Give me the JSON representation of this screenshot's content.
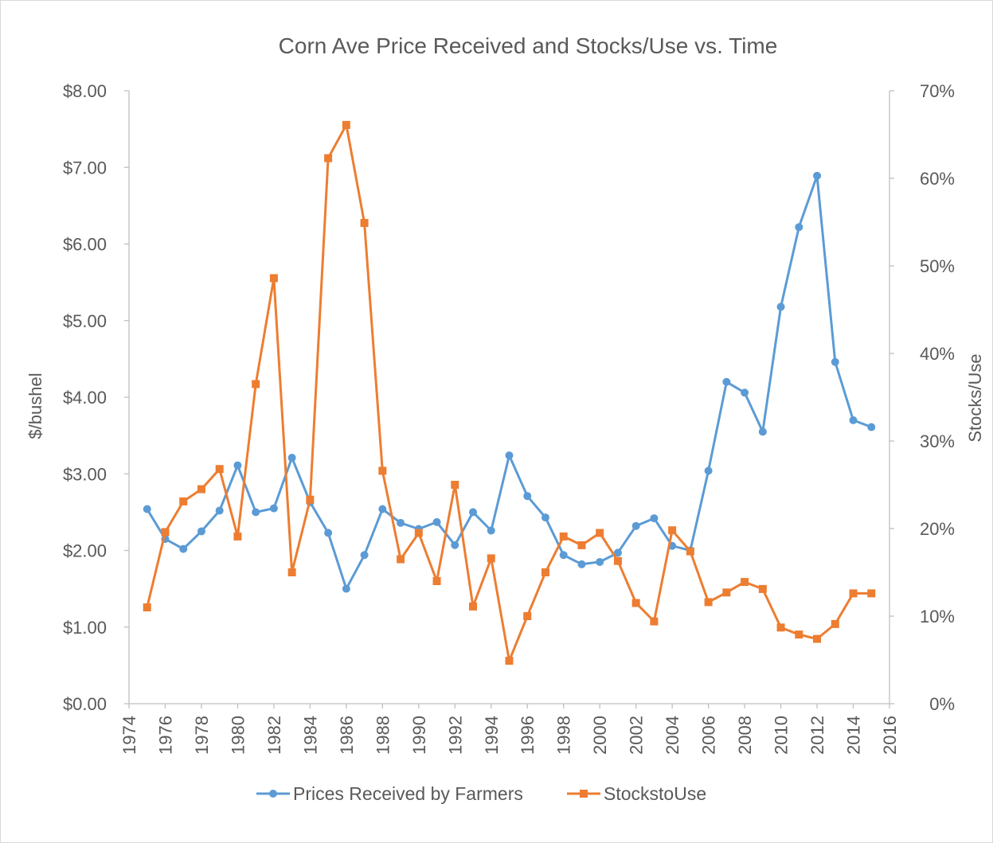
{
  "chart_data": {
    "type": "line",
    "title": "Corn Ave Price Received and Stocks/Use vs. Time",
    "ylabel_left": "$/bushel",
    "ylabel_right": "Stocks/Use",
    "xlim": [
      1974,
      2016
    ],
    "x_ticks": [
      "1974",
      "1976",
      "1978",
      "1980",
      "1982",
      "1984",
      "1986",
      "1988",
      "1990",
      "1992",
      "1994",
      "1996",
      "1998",
      "2000",
      "2002",
      "2004",
      "2006",
      "2008",
      "2010",
      "2012",
      "2014",
      "2016"
    ],
    "ylim_left": [
      0,
      8
    ],
    "y_ticks_left": [
      "$0.00",
      "$1.00",
      "$2.00",
      "$3.00",
      "$4.00",
      "$5.00",
      "$6.00",
      "$7.00",
      "$8.00"
    ],
    "ylim_right": [
      0,
      0.7
    ],
    "y_ticks_right": [
      "0%",
      "10%",
      "20%",
      "30%",
      "40%",
      "50%",
      "60%",
      "70%"
    ],
    "grid": false,
    "legend_position": "bottom",
    "x": [
      1975,
      1976,
      1977,
      1978,
      1979,
      1980,
      1981,
      1982,
      1983,
      1984,
      1985,
      1986,
      1987,
      1988,
      1989,
      1990,
      1991,
      1992,
      1993,
      1994,
      1995,
      1996,
      1997,
      1998,
      1999,
      2000,
      2001,
      2002,
      2003,
      2004,
      2005,
      2006,
      2007,
      2008,
      2009,
      2010,
      2011,
      2012,
      2013,
      2014,
      2015
    ],
    "series": [
      {
        "name": "Prices Received by Farmers",
        "axis": "left",
        "color": "#5b9bd5",
        "marker": "circle",
        "values": [
          2.54,
          2.15,
          2.02,
          2.25,
          2.52,
          3.11,
          2.5,
          2.55,
          3.21,
          2.63,
          2.23,
          1.5,
          1.94,
          2.54,
          2.36,
          2.28,
          2.37,
          2.07,
          2.5,
          2.26,
          3.24,
          2.71,
          2.43,
          1.94,
          1.82,
          1.85,
          1.97,
          2.32,
          2.42,
          2.06,
          2.0,
          3.04,
          4.2,
          4.06,
          3.55,
          5.18,
          6.22,
          6.89,
          4.46,
          3.7,
          3.61
        ]
      },
      {
        "name": "StockstoUse",
        "axis": "right",
        "color": "#ed7d31",
        "marker": "square",
        "values": [
          0.11,
          0.196,
          0.231,
          0.245,
          0.268,
          0.191,
          0.365,
          0.486,
          0.15,
          0.233,
          0.623,
          0.661,
          0.549,
          0.266,
          0.165,
          0.195,
          0.14,
          0.25,
          0.111,
          0.166,
          0.049,
          0.1,
          0.15,
          0.191,
          0.181,
          0.195,
          0.163,
          0.115,
          0.094,
          0.198,
          0.174,
          0.116,
          0.127,
          0.139,
          0.131,
          0.087,
          0.079,
          0.074,
          0.091,
          0.126,
          0.126
        ]
      }
    ]
  }
}
